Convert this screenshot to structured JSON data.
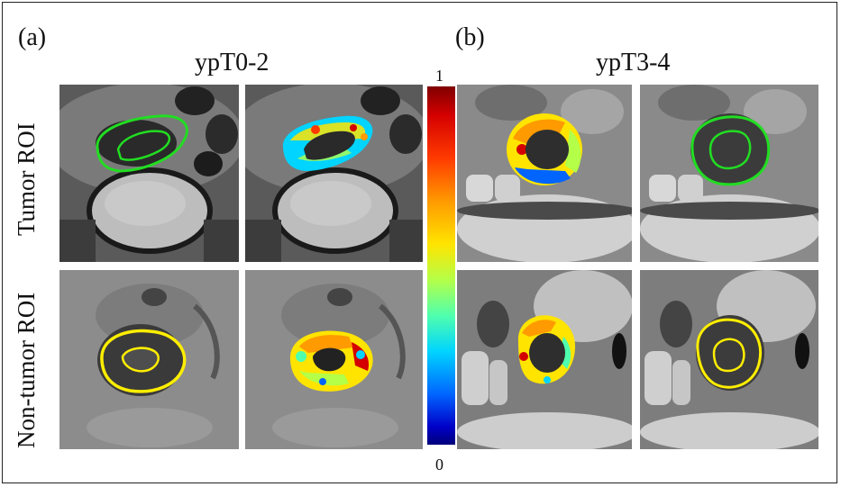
{
  "panels": {
    "a_label": "(a)",
    "b_label": "(b)",
    "a_title": "ypT0-2",
    "b_title": "ypT3-4"
  },
  "rows": {
    "top_label": "Tumor ROI",
    "bottom_label": "Non-tumor ROI"
  },
  "colorbar": {
    "max_label": "1",
    "min_label": "0",
    "colors": [
      "#7f0000",
      "#ff3a00",
      "#ffe400",
      "#4fffae",
      "#00d4ff",
      "#0000c8"
    ]
  },
  "overlay_colors": {
    "tumor_contour": "#22dd22",
    "nontumor_contour": "#ffee00"
  }
}
